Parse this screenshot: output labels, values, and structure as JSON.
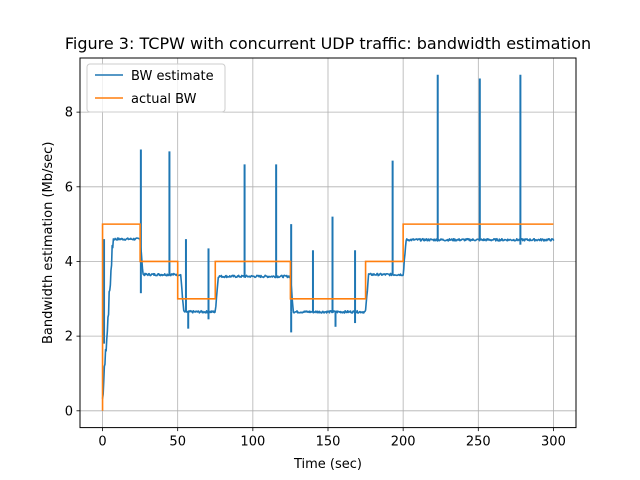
{
  "chart_data": {
    "type": "line",
    "title": "Figure 3: TCPW with concurrent UDP traffic: bandwidth estimation",
    "xlabel": "Time (sec)",
    "ylabel": "Bandwidth estimation (Mb/sec)",
    "xlim": [
      -15,
      315
    ],
    "ylim": [
      -0.45,
      9.45
    ],
    "xticks": [
      0,
      50,
      100,
      150,
      200,
      250,
      300
    ],
    "yticks": [
      0,
      2,
      4,
      6,
      8
    ],
    "grid": true,
    "legend_position": "top-left",
    "series": [
      {
        "name": "BW estimate",
        "color": "#1f77b4",
        "segments": [
          {
            "start": 0,
            "end": 25,
            "level": 4.6,
            "ramp_to": 7
          },
          {
            "start": 25,
            "end": 52,
            "level": 3.65
          },
          {
            "start": 52,
            "end": 75,
            "level": 2.65
          },
          {
            "start": 75,
            "end": 125,
            "level": 3.6
          },
          {
            "start": 125,
            "end": 175,
            "level": 2.65
          },
          {
            "start": 175,
            "end": 200,
            "level": 3.65
          },
          {
            "start": 200,
            "end": 300,
            "level": 4.58
          }
        ],
        "spikes": [
          {
            "x": 25.5,
            "y": 7.0
          },
          {
            "x": 44.5,
            "y": 6.95
          },
          {
            "x": 55.5,
            "y": 4.6
          },
          {
            "x": 70.5,
            "y": 4.35
          },
          {
            "x": 94.5,
            "y": 6.6
          },
          {
            "x": 115.5,
            "y": 6.6
          },
          {
            "x": 125.5,
            "y": 5.0
          },
          {
            "x": 140,
            "y": 4.3
          },
          {
            "x": 153,
            "y": 5.2
          },
          {
            "x": 168,
            "y": 4.3
          },
          {
            "x": 193,
            "y": 6.7
          },
          {
            "x": 223,
            "y": 9.0
          },
          {
            "x": 251,
            "y": 8.9
          },
          {
            "x": 278,
            "y": 9.0
          }
        ],
        "dips": [
          {
            "x": 1,
            "y": 1.8
          },
          {
            "x": 25.5,
            "y": 3.15
          },
          {
            "x": 57,
            "y": 2.2
          },
          {
            "x": 70.5,
            "y": 2.45
          },
          {
            "x": 125.5,
            "y": 2.1
          },
          {
            "x": 155,
            "y": 2.25
          },
          {
            "x": 168,
            "y": 2.35
          },
          {
            "x": 278,
            "y": 4.45
          }
        ]
      },
      {
        "name": "actual BW",
        "color": "#ff7f0e",
        "points": [
          [
            0,
            0
          ],
          [
            0,
            5
          ],
          [
            25,
            5
          ],
          [
            25,
            4
          ],
          [
            50,
            4
          ],
          [
            50,
            3
          ],
          [
            75,
            3
          ],
          [
            75,
            4
          ],
          [
            125,
            4
          ],
          [
            125,
            3
          ],
          [
            175,
            3
          ],
          [
            175,
            4
          ],
          [
            200,
            4
          ],
          [
            200,
            5
          ],
          [
            300,
            5
          ]
        ]
      }
    ]
  }
}
